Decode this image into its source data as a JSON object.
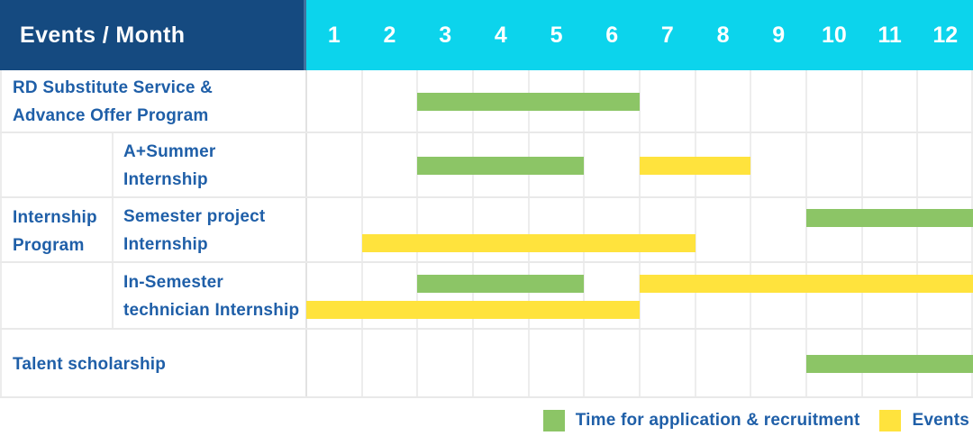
{
  "header": {
    "label": "Events / Month"
  },
  "colors": {
    "header_navy": "#154a80",
    "months_cyan": "#0cd4ec",
    "application_green": "#8cc566",
    "events_yellow": "#ffe33d",
    "label_blue": "#1f5fa8",
    "grid_gray": "#ededed",
    "header_text": "#ffffff"
  },
  "legend": {
    "items": [
      {
        "kind": "application",
        "label": "Time for application & recruitment"
      },
      {
        "kind": "events",
        "label": "Events"
      }
    ]
  },
  "chart_data": {
    "type": "bar",
    "subtype": "gantt",
    "title": "Events / Month",
    "xlabel": "Month",
    "x_ticks": [
      "1",
      "2",
      "3",
      "4",
      "5",
      "6",
      "7",
      "8",
      "9",
      "10",
      "11",
      "12"
    ],
    "x_range": [
      1,
      12
    ],
    "grid": true,
    "legend_position": "bottom-right",
    "series_legend": {
      "application": "Time for application & recruitment",
      "events": "Events"
    },
    "group_header": {
      "label": "Internship Program",
      "label_lines": [
        "Internship",
        "Program"
      ],
      "spans_task_indexes": [
        1,
        3
      ]
    },
    "tasks": [
      {
        "name": "RD Substitute Service & Advance Offer Program",
        "name_lines": [
          "RD Substitute Service &",
          "Advance Offer Program"
        ],
        "group": null,
        "bars": [
          {
            "kind": "application",
            "start_month": 3,
            "end_month": 6,
            "lane": "center"
          }
        ]
      },
      {
        "name": "A+Summer Internship",
        "name_lines": [
          "A+Summer",
          "Internship"
        ],
        "group": "Internship Program",
        "bars": [
          {
            "kind": "application",
            "start_month": 3,
            "end_month": 5,
            "lane": "center"
          },
          {
            "kind": "events",
            "start_month": 7,
            "end_month": 8,
            "lane": "center"
          }
        ]
      },
      {
        "name": "Semester project Internship",
        "name_lines": [
          "Semester project",
          "Internship"
        ],
        "group": "Internship Program",
        "bars": [
          {
            "kind": "application",
            "start_month": 10,
            "end_month": 12,
            "lane": "top"
          },
          {
            "kind": "events",
            "start_month": 2,
            "end_month": 7,
            "lane": "bottom"
          }
        ]
      },
      {
        "name": "In-Semester technician Internship",
        "name_lines": [
          "In-Semester",
          "technician Internship"
        ],
        "group": "Internship Program",
        "bars": [
          {
            "kind": "application",
            "start_month": 3,
            "end_month": 5,
            "lane": "top"
          },
          {
            "kind": "events",
            "start_month": 7,
            "end_month": 12,
            "lane": "top"
          },
          {
            "kind": "events",
            "start_month": 1,
            "end_month": 6,
            "lane": "bottom"
          }
        ]
      },
      {
        "name": "Talent scholarship",
        "name_lines": [
          "Talent scholarship"
        ],
        "group": null,
        "bars": [
          {
            "kind": "application",
            "start_month": 10,
            "end_month": 12,
            "lane": "center"
          }
        ]
      }
    ]
  }
}
